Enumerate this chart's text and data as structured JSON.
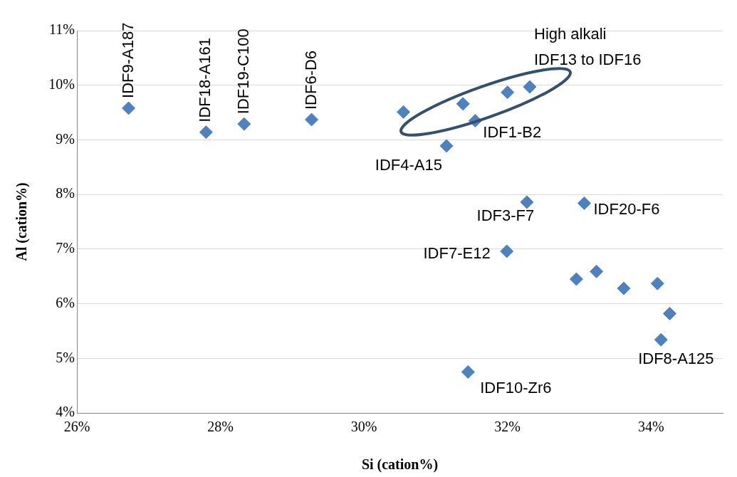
{
  "chart_data": {
    "type": "scatter",
    "xlabel": "Si (cation%)",
    "ylabel": "Al (cation%)",
    "x": [
      26.72,
      27.8,
      28.33,
      29.27,
      30.55,
      31.38,
      32.0,
      32.31,
      31.55,
      31.15,
      32.27,
      33.07,
      31.99,
      32.96,
      33.24,
      33.62,
      34.09,
      34.26,
      34.14,
      31.45
    ],
    "values": [
      9.58,
      9.14,
      9.29,
      9.37,
      9.51,
      9.66,
      9.87,
      9.97,
      9.35,
      8.89,
      7.86,
      7.84,
      6.96,
      6.45,
      6.59,
      6.28,
      6.37,
      5.82,
      5.34,
      4.75
    ],
    "color": "#4f81bd",
    "marker": "diamond",
    "xlim": [
      26,
      35
    ],
    "ylim": [
      4,
      11
    ],
    "xticks": [
      {
        "value": 26,
        "label": "26%"
      },
      {
        "value": 28,
        "label": "28%"
      },
      {
        "value": 30,
        "label": "30%"
      },
      {
        "value": 32,
        "label": "32%"
      },
      {
        "value": 34,
        "label": "34%"
      }
    ],
    "yticks": [
      {
        "value": 4,
        "label": "4%"
      },
      {
        "value": 5,
        "label": "5%"
      },
      {
        "value": 6,
        "label": "6%"
      },
      {
        "value": 7,
        "label": "7%"
      },
      {
        "value": 8,
        "label": "8%"
      },
      {
        "value": 9,
        "label": "9%"
      },
      {
        "value": 10,
        "label": "10%"
      },
      {
        "value": 11,
        "label": "11%"
      }
    ],
    "grid": "y",
    "legend": false,
    "annotations": [
      {
        "text": "IDF9-A187",
        "x": 26.72,
        "y": 9.58
      },
      {
        "text": "IDF18-A161",
        "x": 27.8,
        "y": 9.14
      },
      {
        "text": "IDF19-C100",
        "x": 28.33,
        "y": 9.29
      },
      {
        "text": "IDF6-D6",
        "x": 29.27,
        "y": 9.37
      },
      {
        "text": "IDF4-A15",
        "x": 31.15,
        "y": 8.89
      },
      {
        "text": "IDF1-B2",
        "x": 31.55,
        "y": 9.35
      },
      {
        "text": "IDF3-F7",
        "x": 32.27,
        "y": 7.86
      },
      {
        "text": "IDF20-F6",
        "x": 33.07,
        "y": 7.84
      },
      {
        "text": "IDF7-E12",
        "x": 31.99,
        "y": 6.96
      },
      {
        "text": "IDF8-A125",
        "x": 34.14,
        "y": 5.34
      },
      {
        "text": "IDF10-Zr6",
        "x": 31.45,
        "y": 4.75
      },
      "High alkali\nIDF13 to IDF16"
    ]
  }
}
